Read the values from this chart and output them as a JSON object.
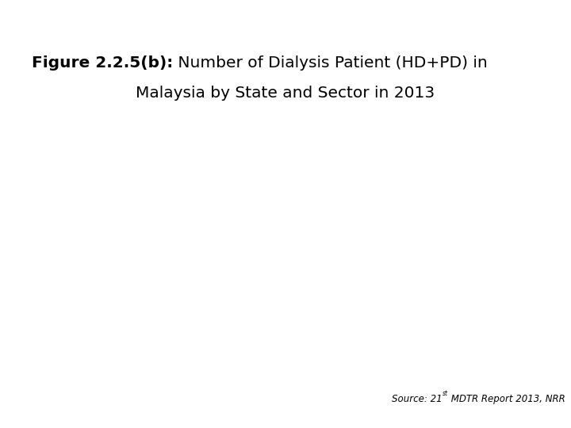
{
  "title_bold": "Figure 2.2.5(b):",
  "title_normal_line1": " Number of Dialysis Patient (HD+PD) in",
  "title_normal_line2": "Malaysia by State and Sector in 2013",
  "source_text": "Source: 21",
  "source_superscript": "st",
  "source_text_rest": " MDTR Report 2013, NRR",
  "background_color": "#ffffff",
  "title_fontsize": 14.5,
  "source_fontsize": 8.5
}
